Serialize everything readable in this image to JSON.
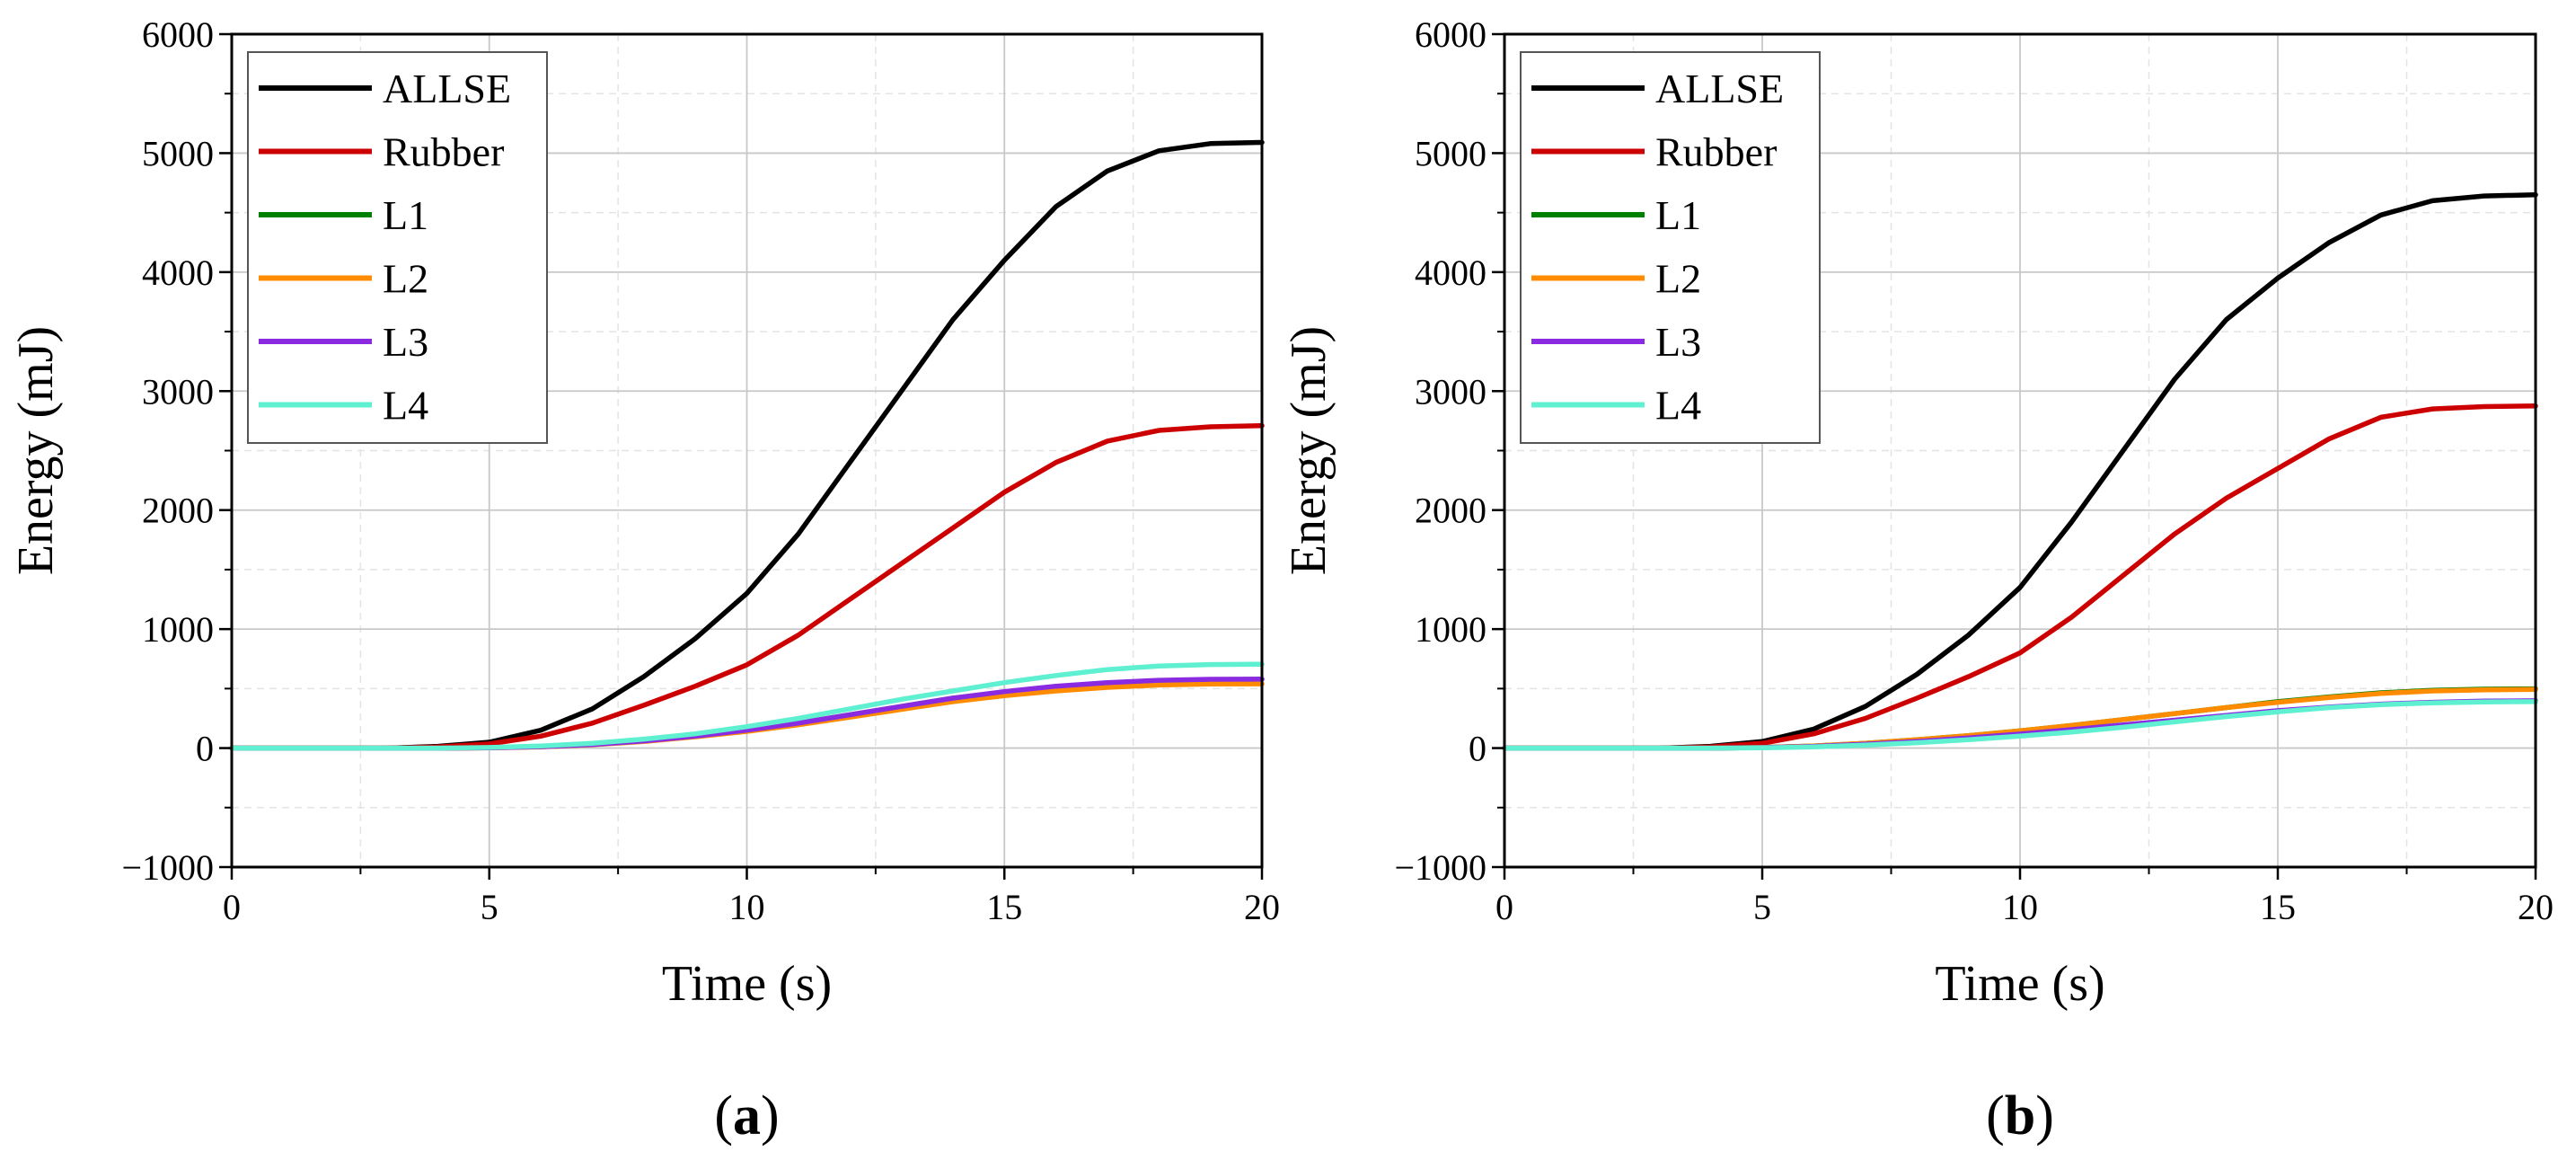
{
  "chart_data": [
    {
      "type": "line",
      "panel_label": "a",
      "xlabel": "Time (s)",
      "ylabel": "Energy (mJ)",
      "xlim": [
        0,
        20
      ],
      "ylim": [
        -1000,
        6000
      ],
      "xticks": [
        0,
        5,
        10,
        15,
        20
      ],
      "yticks": [
        -1000,
        0,
        1000,
        2000,
        3000,
        4000,
        5000,
        6000
      ],
      "ytick_labels": [
        "−1000",
        "0",
        "1000",
        "2000",
        "3000",
        "4000",
        "5000",
        "6000"
      ],
      "grid": true,
      "legend_position": "top-left",
      "x": [
        0,
        1,
        2,
        3,
        4,
        5,
        6,
        7,
        8,
        9,
        10,
        11,
        12,
        13,
        14,
        15,
        16,
        17,
        18,
        19,
        20
      ],
      "series": [
        {
          "name": "ALLSE",
          "color": "#000000",
          "values": [
            0,
            0,
            0,
            0,
            15,
            50,
            150,
            330,
            600,
            920,
            1300,
            1800,
            2400,
            3000,
            3600,
            4100,
            4550,
            4850,
            5020,
            5080,
            5090
          ]
        },
        {
          "name": "Rubber",
          "color": "#cc0000",
          "values": [
            0,
            0,
            0,
            0,
            10,
            35,
            100,
            210,
            360,
            520,
            700,
            950,
            1250,
            1550,
            1850,
            2150,
            2400,
            2580,
            2670,
            2700,
            2710
          ]
        },
        {
          "name": "L1",
          "color": "#008000",
          "values": [
            0,
            0,
            0,
            0,
            0,
            3,
            12,
            30,
            60,
            100,
            150,
            210,
            280,
            350,
            420,
            470,
            510,
            545,
            565,
            575,
            578
          ]
        },
        {
          "name": "L2",
          "color": "#ff8c00",
          "values": [
            0,
            0,
            0,
            0,
            0,
            3,
            10,
            28,
            55,
            95,
            140,
            195,
            260,
            325,
            390,
            440,
            480,
            510,
            530,
            538,
            540
          ]
        },
        {
          "name": "L3",
          "color": "#8a2be2",
          "values": [
            0,
            0,
            0,
            0,
            0,
            3,
            12,
            30,
            60,
            100,
            150,
            210,
            280,
            350,
            420,
            475,
            520,
            550,
            570,
            578,
            580
          ]
        },
        {
          "name": "L4",
          "color": "#5ef0d0",
          "values": [
            0,
            0,
            0,
            0,
            0,
            5,
            18,
            40,
            75,
            120,
            180,
            250,
            330,
            410,
            480,
            550,
            610,
            660,
            690,
            702,
            705
          ]
        }
      ]
    },
    {
      "type": "line",
      "panel_label": "b",
      "xlabel": "Time (s)",
      "ylabel": "Energy (mJ)",
      "xlim": [
        0,
        20
      ],
      "ylim": [
        -1000,
        6000
      ],
      "xticks": [
        0,
        5,
        10,
        15,
        20
      ],
      "yticks": [
        -1000,
        0,
        1000,
        2000,
        3000,
        4000,
        5000,
        6000
      ],
      "ytick_labels": [
        "−1000",
        "0",
        "1000",
        "2000",
        "3000",
        "4000",
        "5000",
        "6000"
      ],
      "grid": true,
      "legend_position": "top-left",
      "x": [
        0,
        1,
        2,
        3,
        4,
        5,
        6,
        7,
        8,
        9,
        10,
        11,
        12,
        13,
        14,
        15,
        16,
        17,
        18,
        19,
        20
      ],
      "series": [
        {
          "name": "ALLSE",
          "color": "#000000",
          "values": [
            0,
            0,
            0,
            0,
            15,
            55,
            160,
            350,
            620,
            950,
            1350,
            1900,
            2500,
            3100,
            3600,
            3950,
            4250,
            4480,
            4600,
            4640,
            4650
          ]
        },
        {
          "name": "Rubber",
          "color": "#cc0000",
          "values": [
            0,
            0,
            0,
            0,
            10,
            40,
            120,
            250,
            420,
            600,
            800,
            1100,
            1450,
            1800,
            2100,
            2350,
            2600,
            2780,
            2850,
            2870,
            2875
          ]
        },
        {
          "name": "L1",
          "color": "#008000",
          "values": [
            0,
            0,
            0,
            0,
            0,
            5,
            18,
            40,
            70,
            105,
            145,
            190,
            240,
            290,
            340,
            390,
            430,
            465,
            485,
            495,
            498
          ]
        },
        {
          "name": "L2",
          "color": "#ff8c00",
          "values": [
            0,
            0,
            0,
            0,
            0,
            5,
            18,
            40,
            70,
            105,
            145,
            190,
            240,
            290,
            340,
            385,
            425,
            460,
            480,
            490,
            493
          ]
        },
        {
          "name": "L3",
          "color": "#8a2be2",
          "values": [
            0,
            0,
            0,
            0,
            0,
            4,
            14,
            32,
            56,
            85,
            118,
            155,
            195,
            235,
            275,
            315,
            345,
            370,
            385,
            395,
            398
          ]
        },
        {
          "name": "L4",
          "color": "#5ef0d0",
          "values": [
            0,
            0,
            0,
            0,
            0,
            3,
            10,
            25,
            45,
            70,
            100,
            135,
            175,
            220,
            265,
            305,
            340,
            365,
            380,
            388,
            390
          ]
        }
      ]
    }
  ]
}
